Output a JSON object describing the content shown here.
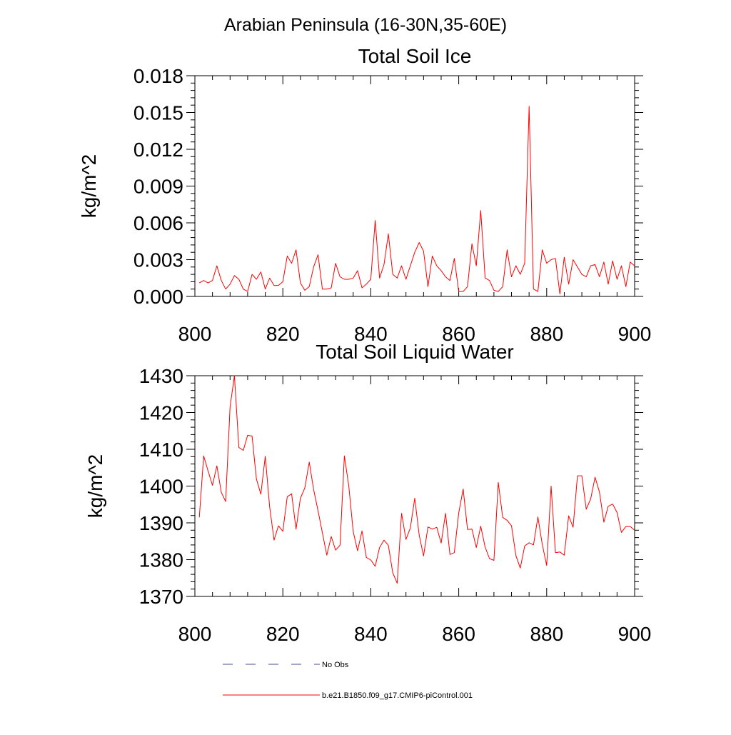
{
  "page": {
    "title": "Arabian Peninsula (16-30N,35-60E)"
  },
  "legend": {
    "items": [
      {
        "label": "No Obs",
        "style": "dashed",
        "color": "#4a4f8a"
      },
      {
        "label": "b.e21.B1850.f09_g17.CMIP6-piControl.001",
        "style": "solid",
        "color": "#ff0000"
      }
    ]
  },
  "chart_data": [
    {
      "type": "line",
      "title": "Total Soil Ice",
      "xlabel": "",
      "ylabel": "kg/m^2",
      "xlim": [
        800,
        900
      ],
      "ylim": [
        0,
        0.018
      ],
      "xticks": [
        800,
        820,
        840,
        860,
        880,
        900
      ],
      "xtick_labels": [
        "800",
        "820",
        "840",
        "860",
        "880",
        "900"
      ],
      "yticks": [
        0,
        0.003,
        0.006,
        0.009,
        0.012,
        0.015,
        0.018
      ],
      "ytick_labels": [
        "0.000",
        "0.003",
        "0.006",
        "0.009",
        "0.012",
        "0.015",
        "0.018"
      ],
      "grid": false,
      "color": "#ff0000",
      "series": [
        {
          "x": [
            801,
            802,
            803,
            804,
            805,
            806,
            807,
            808,
            809,
            810,
            811,
            812,
            813,
            814,
            815,
            816,
            817,
            818,
            819,
            820,
            821,
            822,
            823,
            824,
            825,
            826,
            827,
            828,
            829,
            830,
            831,
            832,
            833,
            834,
            835,
            836,
            837,
            838,
            839,
            840,
            841,
            842,
            843,
            844,
            845,
            846,
            847,
            848,
            849,
            850,
            851,
            852,
            853,
            854,
            855,
            856,
            857,
            858,
            859,
            860,
            861,
            862,
            863,
            864,
            865,
            866,
            867,
            868,
            869,
            870,
            871,
            872,
            873,
            874,
            875,
            876,
            877,
            878,
            879,
            880,
            881,
            882,
            883,
            884,
            885,
            886,
            887,
            888,
            889,
            890,
            891,
            892,
            893,
            894,
            895,
            896,
            897,
            898,
            899,
            900
          ],
          "values": [
            0.0011,
            0.0013,
            0.0011,
            0.0013,
            0.0025,
            0.0013,
            0.0006,
            0.001,
            0.0017,
            0.0014,
            0.0006,
            0.0004,
            0.0018,
            0.0014,
            0.002,
            0.0006,
            0.0015,
            0.0009,
            0.0009,
            0.0012,
            0.0033,
            0.0027,
            0.0038,
            0.0011,
            0.0005,
            0.0008,
            0.0024,
            0.0034,
            0.0006,
            0.0006,
            0.0007,
            0.0027,
            0.0016,
            0.0014,
            0.0014,
            0.0015,
            0.0021,
            0.0007,
            0.001,
            0.0014,
            0.0062,
            0.0015,
            0.0026,
            0.0051,
            0.0018,
            0.0015,
            0.0025,
            0.0014,
            0.0025,
            0.0036,
            0.0044,
            0.0037,
            0.0008,
            0.0033,
            0.0025,
            0.0021,
            0.0016,
            0.0013,
            0.0031,
            0.0004,
            0.0004,
            0.0008,
            0.0043,
            0.0025,
            0.007,
            0.0015,
            0.0013,
            0.0005,
            0.0004,
            0.0008,
            0.0038,
            0.0016,
            0.0025,
            0.0018,
            0.0027,
            0.0155,
            0.0006,
            0.0004,
            0.0038,
            0.0027,
            0.003,
            0.0031,
            0.0002,
            0.0032,
            0.001,
            0.003,
            0.0024,
            0.0018,
            0.0016,
            0.0025,
            0.0026,
            0.0016,
            0.0028,
            0.001,
            0.0029,
            0.0014,
            0.0025,
            0.0008,
            0.0028,
            0.0025
          ]
        }
      ]
    },
    {
      "type": "line",
      "title": "Total Soil Liquid Water",
      "xlabel": "",
      "ylabel": "kg/m^2",
      "xlim": [
        800,
        900
      ],
      "ylim": [
        1370,
        1430
      ],
      "xticks": [
        800,
        820,
        840,
        860,
        880,
        900
      ],
      "xtick_labels": [
        "800",
        "820",
        "840",
        "860",
        "880",
        "900"
      ],
      "yticks": [
        1370,
        1380,
        1390,
        1400,
        1410,
        1420,
        1430
      ],
      "ytick_labels": [
        "1370",
        "1380",
        "1390",
        "1400",
        "1410",
        "1420",
        "1430"
      ],
      "grid": false,
      "color": "#ff0000",
      "series": [
        {
          "x": [
            801,
            802,
            803,
            804,
            805,
            806,
            807,
            808,
            809,
            810,
            811,
            812,
            813,
            814,
            815,
            816,
            817,
            818,
            819,
            820,
            821,
            822,
            823,
            824,
            825,
            826,
            827,
            828,
            829,
            830,
            831,
            832,
            833,
            834,
            835,
            836,
            837,
            838,
            839,
            840,
            841,
            842,
            843,
            844,
            845,
            846,
            847,
            848,
            849,
            850,
            851,
            852,
            853,
            854,
            855,
            856,
            857,
            858,
            859,
            860,
            861,
            862,
            863,
            864,
            865,
            866,
            867,
            868,
            869,
            870,
            871,
            872,
            873,
            874,
            875,
            876,
            877,
            878,
            879,
            880,
            881,
            882,
            883,
            884,
            885,
            886,
            887,
            888,
            889,
            890,
            891,
            892,
            893,
            894,
            895,
            896,
            897,
            898,
            899,
            900
          ],
          "values": [
            1391.5,
            1408.2,
            1404.1,
            1400.2,
            1405.5,
            1398.3,
            1395.8,
            1421.6,
            1430.0,
            1410.5,
            1409.7,
            1413.8,
            1413.6,
            1401.9,
            1397.8,
            1408.1,
            1394.4,
            1385.3,
            1389.2,
            1387.7,
            1397.1,
            1397.9,
            1388.3,
            1396.7,
            1399.5,
            1406.5,
            1399.1,
            1393.3,
            1387.3,
            1381.2,
            1386.3,
            1382.6,
            1383.9,
            1408.2,
            1400.0,
            1387.6,
            1382.4,
            1387.8,
            1380.6,
            1379.9,
            1378.2,
            1383.3,
            1385.3,
            1383.9,
            1376.4,
            1373.6,
            1392.6,
            1385.5,
            1388.6,
            1396.7,
            1386.7,
            1381.0,
            1388.9,
            1388.3,
            1388.8,
            1384.5,
            1392.6,
            1381.4,
            1381.9,
            1392.7,
            1399.2,
            1388.2,
            1388.3,
            1383.3,
            1389.1,
            1383.4,
            1380.3,
            1379.8,
            1401.0,
            1391.5,
            1390.7,
            1389.2,
            1381.1,
            1377.7,
            1383.7,
            1384.6,
            1384.0,
            1391.6,
            1384.2,
            1378.4,
            1400.0,
            1381.9,
            1382.1,
            1381.2,
            1391.9,
            1388.8,
            1402.8,
            1402.8,
            1393.7,
            1396.5,
            1402.4,
            1398.4,
            1390.2,
            1394.5,
            1395.1,
            1392.8,
            1387.4,
            1389.0,
            1389.0,
            1388.0
          ]
        }
      ]
    }
  ]
}
